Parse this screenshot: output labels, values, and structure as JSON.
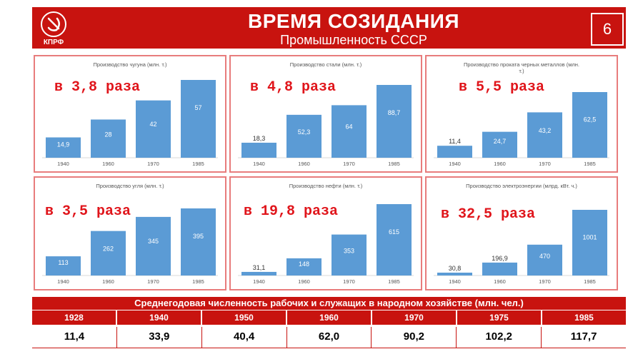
{
  "header": {
    "logo_text": "КПРФ",
    "title": "ВРЕМЯ СОЗИДАНИЯ",
    "subtitle": "Промышленность СССР",
    "page_number": "6"
  },
  "colors": {
    "brand_red": "#c8130f",
    "bar_blue": "#5b9bd5",
    "panel_border": "#e87c7c",
    "ratio_red": "#e0151b"
  },
  "chart_data": [
    {
      "type": "bar",
      "title": "Производство чугуна (млн. т.)",
      "categories": [
        "1940",
        "1960",
        "1970",
        "1985"
      ],
      "values": [
        14.9,
        28,
        42,
        57
      ],
      "labels": [
        "14,9",
        "28",
        "42",
        "57"
      ],
      "annotation": "в 3,8 раза"
    },
    {
      "type": "bar",
      "title": "Производство стали (млн. т.)",
      "categories": [
        "1940",
        "1960",
        "1970",
        "1985"
      ],
      "values": [
        18.3,
        52.3,
        64,
        88.7
      ],
      "labels": [
        "18,3",
        "52,3",
        "64",
        "88,7"
      ],
      "annotation": "в 4,8 раза"
    },
    {
      "type": "bar",
      "title": "Производство проката черных металлов (млн. т.)",
      "categories": [
        "1940",
        "1960",
        "1970",
        "1985"
      ],
      "values": [
        11.4,
        24.7,
        43.2,
        62.5
      ],
      "labels": [
        "11,4",
        "24,7",
        "43,2",
        "62,5"
      ],
      "annotation": "в 5,5 раза"
    },
    {
      "type": "bar",
      "title": "Производство угля (млн. т.)",
      "categories": [
        "1940",
        "1960",
        "1970",
        "1985"
      ],
      "values": [
        113,
        262,
        345,
        395
      ],
      "labels": [
        "113",
        "262",
        "345",
        "395"
      ],
      "annotation": "в 3,5 раза"
    },
    {
      "type": "bar",
      "title": "Производство нефти (млн. т.)",
      "categories": [
        "1940",
        "1960",
        "1970",
        "1985"
      ],
      "values": [
        31.1,
        148,
        353,
        615
      ],
      "labels": [
        "31,1",
        "148",
        "353",
        "615"
      ],
      "annotation": "в 19,8 раза"
    },
    {
      "type": "bar",
      "title": "Производство электроэнергии (млрд. кВт. ч.)",
      "categories": [
        "1940",
        "1960",
        "1970",
        "1985"
      ],
      "values": [
        30.8,
        196.9,
        470,
        1001
      ],
      "labels": [
        "30,8",
        "196,9",
        "470",
        "1001"
      ],
      "annotation": "в 32,5 раза"
    }
  ],
  "workforce": {
    "title": "Среднегодовая численность рабочих и служащих в народном хозяйстве (млн. чел.)",
    "years": [
      "1928",
      "1940",
      "1950",
      "1960",
      "1970",
      "1975",
      "1985"
    ],
    "values": [
      "11,4",
      "33,9",
      "40,4",
      "62,0",
      "90,2",
      "102,2",
      "117,7"
    ]
  }
}
